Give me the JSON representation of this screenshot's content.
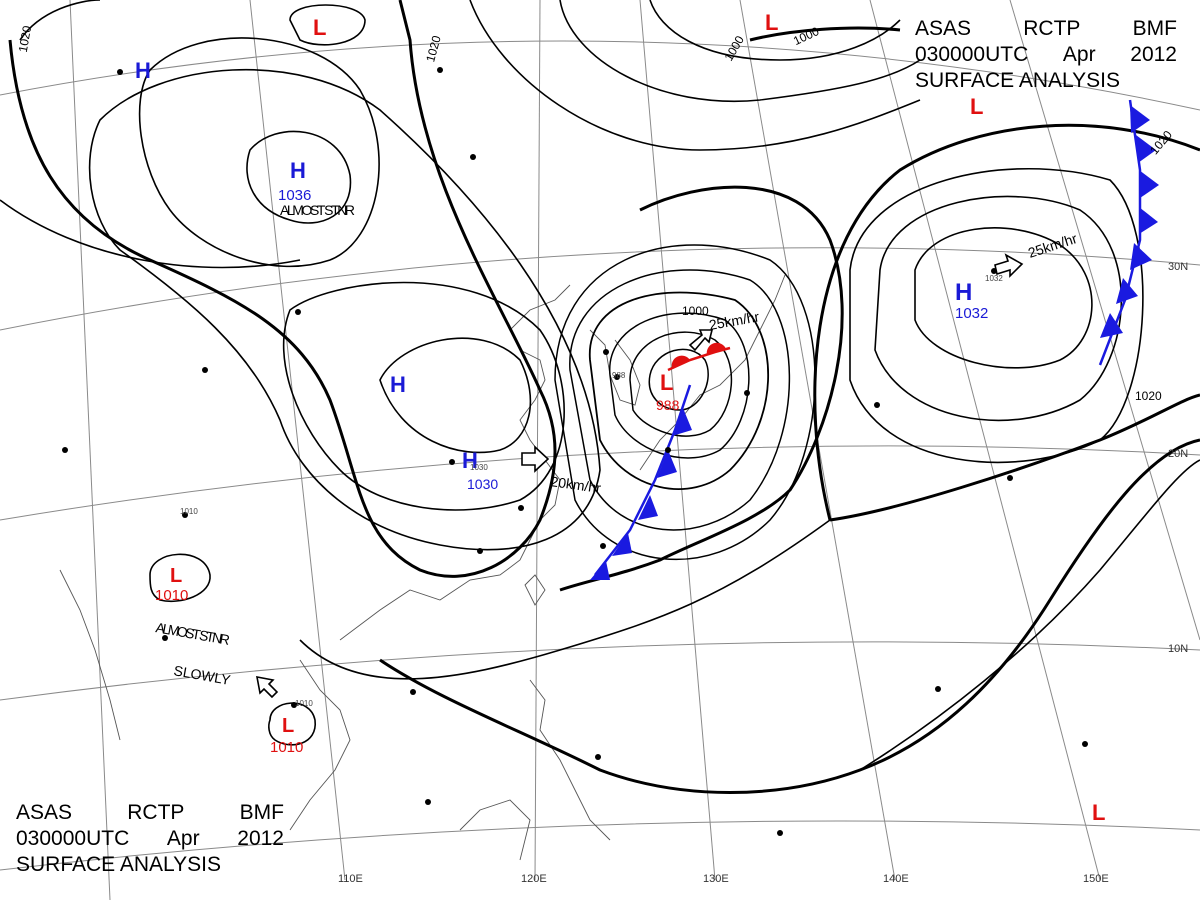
{
  "header_top": {
    "agency": "ASAS",
    "center": "RCTP",
    "office": "BMF",
    "time": "030000UTC",
    "month": "Apr",
    "year": "2012",
    "title": "SURFACE ANALYSIS"
  },
  "header_bottom": {
    "agency": "ASAS",
    "center": "RCTP",
    "office": "BMF",
    "time": "030000UTC",
    "month": "Apr",
    "year": "2012",
    "title": "SURFACE ANALYSIS"
  },
  "lon_labels": [
    "110E",
    "120E",
    "130E",
    "140E",
    "150E"
  ],
  "lat_labels": [
    "30N",
    "20N",
    "10N"
  ],
  "isobar_labels": [
    "1020",
    "1020",
    "1000",
    "1000",
    "1020",
    "1020",
    "1000"
  ],
  "pressure_centers": [
    {
      "type": "H",
      "value": "1036",
      "note": "ALMOST STNR"
    },
    {
      "type": "H",
      "value": "1030",
      "motion": "20km/hr"
    },
    {
      "type": "H",
      "value": "1032",
      "motion": "25km/hr"
    },
    {
      "type": "L",
      "value": "988",
      "motion": "25km/hr"
    },
    {
      "type": "L",
      "value": "1010",
      "note": "ALMOST STNR"
    },
    {
      "type": "L",
      "value": "1010",
      "note": "SLOWLY"
    },
    {
      "type": "H",
      "value": ""
    },
    {
      "type": "H",
      "value": ""
    },
    {
      "type": "L",
      "value": ""
    },
    {
      "type": "L",
      "value": ""
    },
    {
      "type": "L",
      "value": ""
    },
    {
      "type": "L",
      "value": ""
    }
  ],
  "station_values": [
    "1030",
    "1032",
    "1010",
    "1010",
    "988"
  ],
  "colors": {
    "high": "#1a1ad6",
    "low": "#e01010",
    "front_cold": "#1a1ae0",
    "front_warm": "#e01010",
    "isobar": "#000000",
    "grid": "#777777"
  }
}
